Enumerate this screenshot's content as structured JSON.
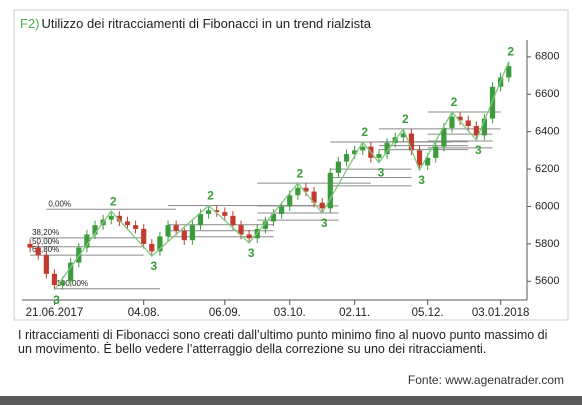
{
  "chart_data": {
    "type": "candlestick",
    "title_prefix": "F2)",
    "title": "Utilizzo dei ritracciamenti di Fibonacci in un trend rialzista",
    "caption": "I ritracciamenti di Fibonacci sono creati dall’ultimo punto minimo fino al nuovo punto massimo di un movimento. È bello vedere l’atterraggio della correzione su uno dei ritracciamenti.",
    "source": "Fonte: www.agenatrader.com",
    "up_color": "#3d9b3d",
    "down_color": "#c23b2e",
    "fib_color": "#8a8a8a",
    "zigzag_color": "#7fc97f",
    "label_color": "#3d9b3d",
    "open": [
      5800,
      5780,
      5740,
      5640,
      5580,
      5600,
      5700,
      5780,
      5850,
      5900,
      5930,
      5950,
      5920,
      5900,
      5880,
      5800,
      5760,
      5840,
      5900,
      5870,
      5820,
      5900,
      5960,
      5980,
      5970,
      5950,
      5900,
      5850,
      5830,
      5880,
      5920,
      5960,
      6000,
      6060,
      6100,
      6080,
      6020,
      5990,
      6180,
      6240,
      6280,
      6300,
      6320,
      6260,
      6280,
      6340,
      6370,
      6390,
      6300,
      6220,
      6260,
      6320,
      6420,
      6480,
      6460,
      6430,
      6380,
      6470,
      6640,
      6690
    ],
    "high": [
      5825,
      5805,
      5765,
      5665,
      5625,
      5725,
      5805,
      5875,
      5925,
      5955,
      5975,
      5975,
      5945,
      5925,
      5905,
      5825,
      5865,
      5925,
      5925,
      5895,
      5925,
      5985,
      6005,
      6005,
      5995,
      5975,
      5925,
      5875,
      5905,
      5945,
      5985,
      6025,
      6085,
      6125,
      6125,
      6105,
      6045,
      6205,
      6265,
      6305,
      6325,
      6345,
      6345,
      6305,
      6365,
      6395,
      6415,
      6415,
      6325,
      6285,
      6345,
      6445,
      6505,
      6505,
      6485,
      6455,
      6495,
      6665,
      6715,
      6775
    ],
    "low": [
      5755,
      5715,
      5615,
      5555,
      5555,
      5575,
      5675,
      5755,
      5825,
      5875,
      5905,
      5895,
      5875,
      5855,
      5775,
      5735,
      5735,
      5815,
      5845,
      5795,
      5795,
      5875,
      5935,
      5945,
      5925,
      5875,
      5825,
      5805,
      5805,
      5855,
      5895,
      5935,
      5975,
      6035,
      6055,
      5995,
      5965,
      5965,
      6155,
      6215,
      6255,
      6275,
      6235,
      6235,
      6255,
      6315,
      6345,
      6275,
      6195,
      6195,
      6235,
      6295,
      6395,
      6435,
      6405,
      6355,
      6355,
      6445,
      6615,
      6665
    ],
    "close": [
      5780,
      5740,
      5640,
      5580,
      5600,
      5700,
      5780,
      5850,
      5900,
      5930,
      5950,
      5920,
      5900,
      5880,
      5800,
      5760,
      5840,
      5900,
      5870,
      5820,
      5900,
      5960,
      5980,
      5970,
      5950,
      5900,
      5850,
      5830,
      5880,
      5920,
      5960,
      6000,
      6060,
      6100,
      6080,
      6020,
      5990,
      6180,
      6240,
      6280,
      6300,
      6320,
      6260,
      6280,
      6340,
      6370,
      6390,
      6300,
      6220,
      6260,
      6320,
      6420,
      6480,
      6460,
      6430,
      6380,
      6470,
      6640,
      6690,
      6750
    ],
    "xlim": [
      -1,
      61
    ],
    "xticks": [
      {
        "value": 3,
        "label": "21.06.2017"
      },
      {
        "value": 14,
        "label": "04.08."
      },
      {
        "value": 24,
        "label": "06.09."
      },
      {
        "value": 32,
        "label": "03.10."
      },
      {
        "value": 40,
        "label": "02.11."
      },
      {
        "value": 49,
        "label": "05.12."
      },
      {
        "value": 58,
        "label": "03.01.2018"
      }
    ],
    "ylim": [
      5500,
      6890
    ],
    "yticks": [
      5600,
      5800,
      6000,
      6200,
      6400,
      6600,
      6800
    ],
    "fib_labeled": [
      {
        "label": "0,00%",
        "value": 5985,
        "from": 2,
        "to": 18
      },
      {
        "label": "38,20%",
        "value": 5832,
        "from": 0,
        "to": 14
      },
      {
        "label": "50,00%",
        "value": 5785,
        "from": 0,
        "to": 14
      },
      {
        "label": "61,80%",
        "value": 5740,
        "from": 0,
        "to": 14
      },
      {
        "label": "100,00%",
        "value": 5560,
        "from": 3,
        "to": 16
      }
    ],
    "fib_lines": [
      {
        "value": 6005,
        "from": 17,
        "to": 35
      },
      {
        "value": 5902,
        "from": 17,
        "to": 30
      },
      {
        "value": 5870,
        "from": 17,
        "to": 30
      },
      {
        "value": 5838,
        "from": 17,
        "to": 30
      },
      {
        "value": 6125,
        "from": 28,
        "to": 42
      },
      {
        "value": 6003,
        "from": 28,
        "to": 38
      },
      {
        "value": 5965,
        "from": 28,
        "to": 38
      },
      {
        "value": 5927,
        "from": 28,
        "to": 38
      },
      {
        "value": 6345,
        "from": 37,
        "to": 52
      },
      {
        "value": 6200,
        "from": 37,
        "to": 47
      },
      {
        "value": 6155,
        "from": 37,
        "to": 47
      },
      {
        "value": 6110,
        "from": 37,
        "to": 47
      },
      {
        "value": 6415,
        "from": 43,
        "to": 58
      },
      {
        "value": 6346,
        "from": 43,
        "to": 54
      },
      {
        "value": 6325,
        "from": 43,
        "to": 54
      },
      {
        "value": 6304,
        "from": 43,
        "to": 54
      },
      {
        "value": 6505,
        "from": 49,
        "to": 58
      },
      {
        "value": 6387,
        "from": 49,
        "to": 57
      },
      {
        "value": 6350,
        "from": 49,
        "to": 57
      },
      {
        "value": 6313,
        "from": 49,
        "to": 57
      }
    ],
    "zigzag": [
      {
        "x": 3,
        "y": 5555,
        "label": "3"
      },
      {
        "x": 10,
        "y": 5975,
        "label": "2"
      },
      {
        "x": 15,
        "y": 5735,
        "label": "3"
      },
      {
        "x": 22,
        "y": 6005,
        "label": "2"
      },
      {
        "x": 27,
        "y": 5805,
        "label": "3"
      },
      {
        "x": 33,
        "y": 6125,
        "label": "2"
      },
      {
        "x": 36,
        "y": 5965,
        "label": "3"
      },
      {
        "x": 41,
        "y": 6345,
        "label": "2"
      },
      {
        "x": 43,
        "y": 6235,
        "label": "3"
      },
      {
        "x": 46,
        "y": 6415,
        "label": "2"
      },
      {
        "x": 48,
        "y": 6195,
        "label": "3"
      },
      {
        "x": 52,
        "y": 6505,
        "label": "2"
      },
      {
        "x": 55,
        "y": 6355,
        "label": "3"
      },
      {
        "x": 59,
        "y": 6775,
        "label": "2"
      }
    ]
  }
}
